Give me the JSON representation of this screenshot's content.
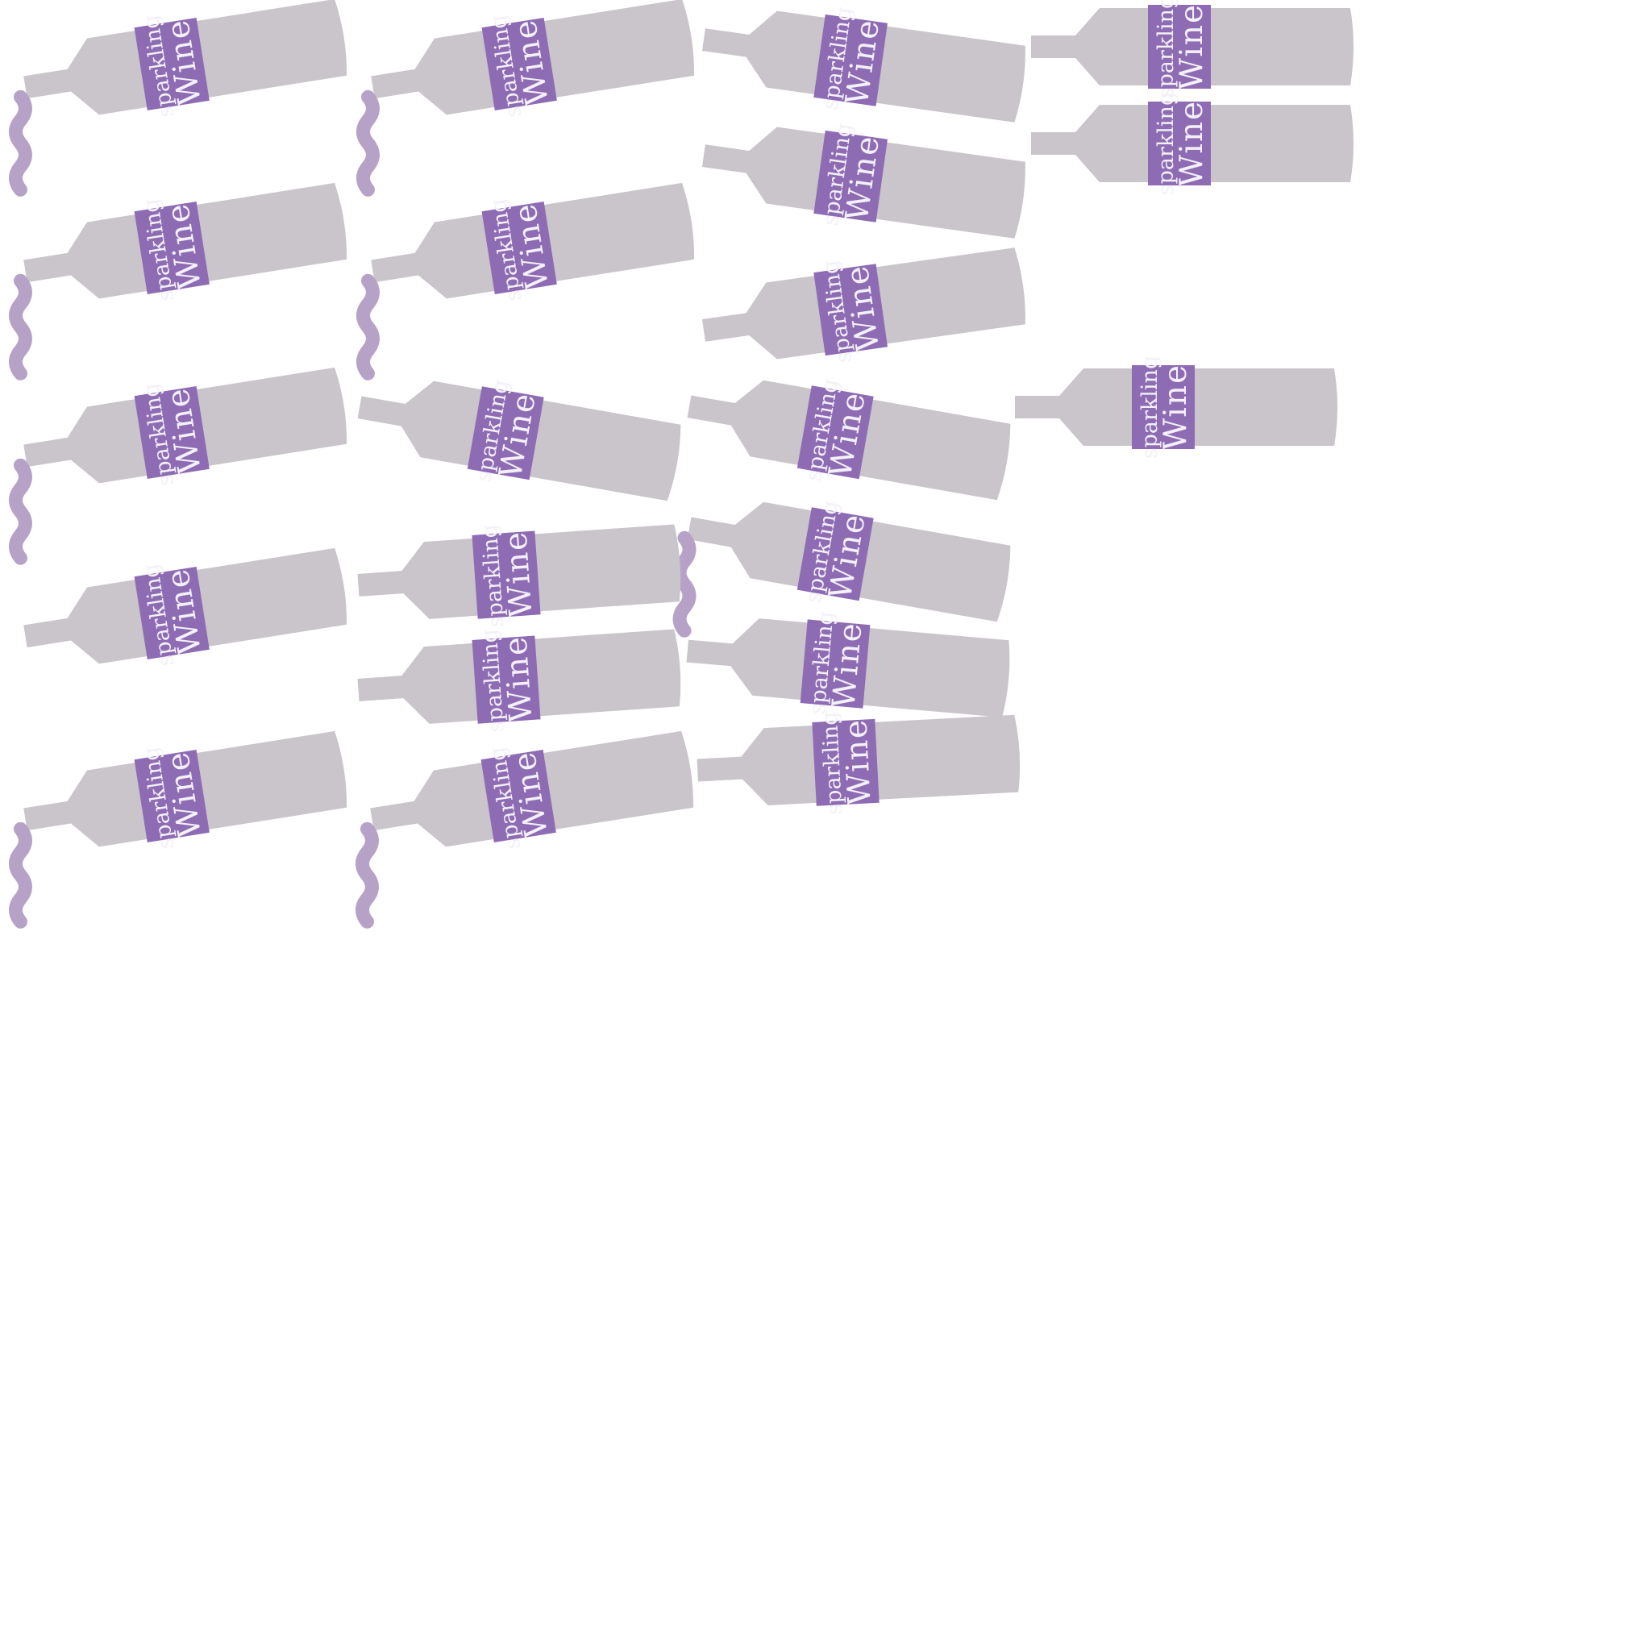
{
  "colors": {
    "background": "#ffffff",
    "bottle": "#c9c5ca",
    "label": "#8e6cb4",
    "label_text": "#f4f0f8",
    "pour_stream": "#b7a2c7"
  },
  "bottles": [
    {
      "label_top": "sparkling",
      "label_bottom": "Wine",
      "pouring": true
    },
    {
      "label_top": "sparkling",
      "label_bottom": "Wine",
      "pouring": true
    },
    {
      "label_top": "sparkling",
      "label_bottom": "Wine",
      "pouring": false
    },
    {
      "label_top": "sparkling",
      "label_bottom": "Wine",
      "pouring": false
    },
    {
      "label_top": "sparkling",
      "label_bottom": "Wine",
      "pouring": false
    },
    {
      "label_top": "sparkling",
      "label_bottom": "Wine",
      "pouring": false
    },
    {
      "label_top": "sparkling",
      "label_bottom": "Wine",
      "pouring": true
    },
    {
      "label_top": "sparkling",
      "label_bottom": "Wine",
      "pouring": true
    },
    {
      "label_top": "sparkling",
      "label_bottom": "Wine",
      "pouring": false
    },
    {
      "label_top": "sparkling",
      "label_bottom": "Wine",
      "pouring": true
    },
    {
      "label_top": "sparkling",
      "label_bottom": "Wine",
      "pouring": false
    },
    {
      "label_top": "sparkling",
      "label_bottom": "Wine",
      "pouring": false
    },
    {
      "label_top": "sparkling",
      "label_bottom": "Wine",
      "pouring": false
    },
    {
      "label_top": "sparkling",
      "label_bottom": "Wine",
      "pouring": true
    },
    {
      "label_top": "sparkling",
      "label_bottom": "Wine",
      "pouring": false
    },
    {
      "label_top": "sparkling",
      "label_bottom": "Wine",
      "pouring": false
    },
    {
      "label_top": "sparkling",
      "label_bottom": "Wine",
      "pouring": false
    },
    {
      "label_top": "sparkling",
      "label_bottom": "Wine",
      "pouring": false
    },
    {
      "label_top": "sparkling",
      "label_bottom": "Wine",
      "pouring": true
    },
    {
      "label_top": "sparkling",
      "label_bottom": "Wine",
      "pouring": true
    },
    {
      "label_top": "sparkling",
      "label_bottom": "Wine",
      "pouring": false
    }
  ]
}
